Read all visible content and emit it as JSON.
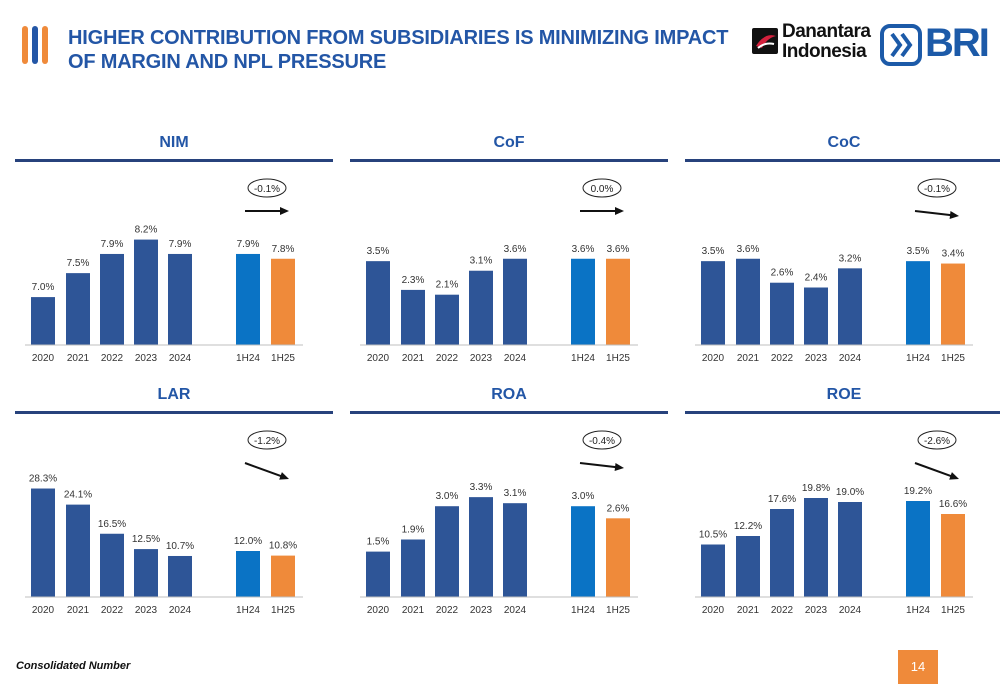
{
  "header": {
    "title": "HIGHER CONTRIBUTION FROM SUBSIDIARIES IS MINIMIZING IMPACT OF MARGIN AND NPL PRESSURE"
  },
  "logos": {
    "danantara_line1": "Danantara",
    "danantara_line2": "Indonesia",
    "bri": "BRI"
  },
  "colors": {
    "annual": "#2e5597",
    "h1_2024": "#0a73c5",
    "h1_2025": "#ef8a3a",
    "title": "#2356a6",
    "rule": "#27427c"
  },
  "footer": {
    "note": "Consolidated Number",
    "page": "14"
  },
  "chart_data": [
    {
      "type": "bar",
      "title": "NIM",
      "categories": [
        "2020",
        "2021",
        "2022",
        "2023",
        "2024",
        "1H24",
        "1H25"
      ],
      "values": [
        7.0,
        7.5,
        7.9,
        8.2,
        7.9,
        7.9,
        7.8
      ],
      "labels": [
        "7.0%",
        "7.5%",
        "7.9%",
        "8.2%",
        "7.9%",
        "7.9%",
        "7.8%"
      ],
      "ylim": [
        6.0,
        8.4
      ],
      "change": "-0.1%",
      "trend": "flat"
    },
    {
      "type": "bar",
      "title": "CoF",
      "categories": [
        "2020",
        "2021",
        "2022",
        "2023",
        "2024",
        "1H24",
        "1H25"
      ],
      "values": [
        3.5,
        2.3,
        2.1,
        3.1,
        3.6,
        3.6,
        3.6
      ],
      "labels": [
        "3.5%",
        "2.3%",
        "2.1%",
        "3.1%",
        "3.6%",
        "3.6%",
        "3.6%"
      ],
      "ylim": [
        0,
        4.8
      ],
      "change": "0.0%",
      "trend": "flat"
    },
    {
      "type": "bar",
      "title": "CoC",
      "categories": [
        "2020",
        "2021",
        "2022",
        "2023",
        "2024",
        "1H24",
        "1H25"
      ],
      "values": [
        3.5,
        3.6,
        2.6,
        2.4,
        3.2,
        3.5,
        3.4
      ],
      "labels": [
        "3.5%",
        "3.6%",
        "2.6%",
        "2.4%",
        "3.2%",
        "3.5%",
        "3.4%"
      ],
      "ylim": [
        0,
        4.8
      ],
      "change": "-0.1%",
      "trend": "slight-down"
    },
    {
      "type": "bar",
      "title": "LAR",
      "categories": [
        "2020",
        "2021",
        "2022",
        "2023",
        "2024",
        "1H24",
        "1H25"
      ],
      "values": [
        28.3,
        24.1,
        16.5,
        12.5,
        10.7,
        12.0,
        10.8
      ],
      "labels": [
        "28.3%",
        "24.1%",
        "16.5%",
        "12.5%",
        "10.7%",
        "12.0%",
        "10.8%"
      ],
      "ylim": [
        0,
        30
      ],
      "change": "-1.2%",
      "trend": "down"
    },
    {
      "type": "bar",
      "title": "ROA",
      "categories": [
        "2020",
        "2021",
        "2022",
        "2023",
        "2024",
        "1H24",
        "1H25"
      ],
      "values": [
        1.5,
        1.9,
        3.0,
        3.3,
        3.1,
        3.0,
        2.6
      ],
      "labels": [
        "1.5%",
        "1.9%",
        "3.0%",
        "3.3%",
        "3.1%",
        "3.0%",
        "2.6%"
      ],
      "ylim": [
        0,
        3.8
      ],
      "change": "-0.4%",
      "trend": "slight-down"
    },
    {
      "type": "bar",
      "title": "ROE",
      "categories": [
        "2020",
        "2021",
        "2022",
        "2023",
        "2024",
        "1H24",
        "1H25"
      ],
      "values": [
        10.5,
        12.2,
        17.6,
        19.8,
        19.0,
        19.2,
        16.6
      ],
      "labels": [
        "10.5%",
        "12.2%",
        "17.6%",
        "19.8%",
        "19.0%",
        "19.2%",
        "16.6%"
      ],
      "ylim": [
        0,
        23
      ],
      "change": "-2.6%",
      "trend": "down"
    }
  ]
}
